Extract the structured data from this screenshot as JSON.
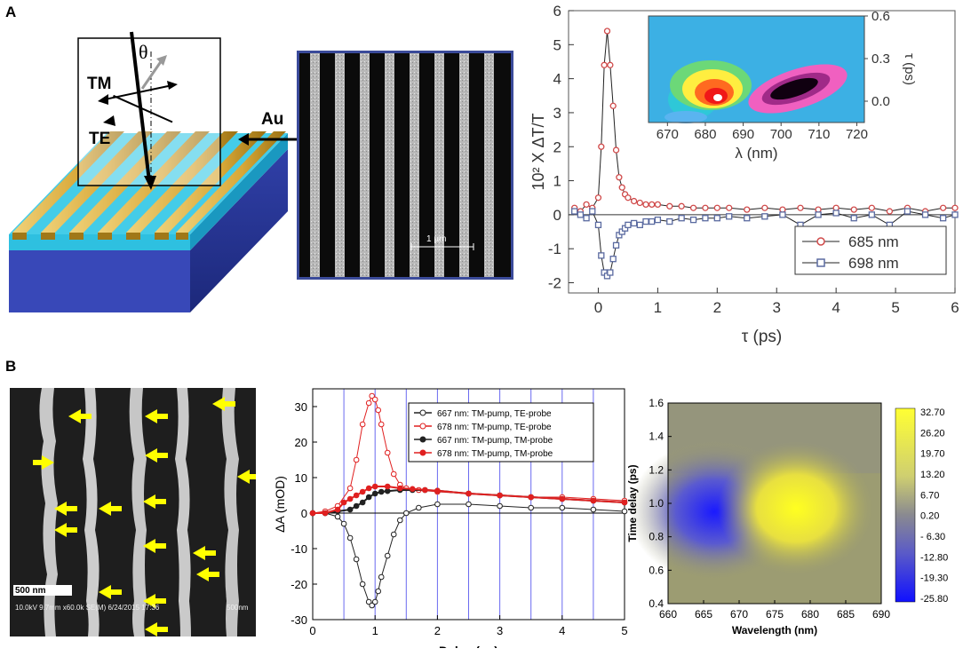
{
  "panel_labels": {
    "a": "A",
    "b": "B"
  },
  "schematic": {
    "theta": "θ",
    "tm": "TM",
    "te": "TE",
    "au": "Au",
    "sem_scale": "1 µm"
  },
  "sem_b": {
    "scale": "500 nm",
    "info": "10.0kV 9.7mm x60.0k SE(M) 6/24/2015 17:36",
    "info_scale": "500nm"
  },
  "colors": {
    "series_685": "#d04a4a",
    "series_698": "#5a6aa0",
    "bc_black": "#222222",
    "bc_red": "#e02020",
    "colorbar_pos": "#ffff33",
    "colorbar_neg": "#1a1aff"
  },
  "chart_data": [
    {
      "type": "line",
      "title": "",
      "xlabel": "τ (ps)",
      "ylabel": "10² X ΔT/T",
      "xlim": [
        -0.5,
        6
      ],
      "ylim": [
        -2.3,
        6
      ],
      "xticks": [
        0,
        1,
        2,
        3,
        4,
        5,
        6
      ],
      "yticks": [
        -2,
        -1,
        0,
        1,
        2,
        3,
        4,
        5,
        6
      ],
      "series": [
        {
          "name": "685 nm",
          "marker": "circle",
          "x": [
            -0.4,
            -0.3,
            -0.2,
            -0.1,
            0.0,
            0.05,
            0.1,
            0.15,
            0.2,
            0.25,
            0.3,
            0.35,
            0.4,
            0.45,
            0.5,
            0.6,
            0.7,
            0.8,
            0.9,
            1.0,
            1.2,
            1.4,
            1.6,
            1.8,
            2.0,
            2.2,
            2.5,
            2.8,
            3.1,
            3.4,
            3.7,
            4.0,
            4.3,
            4.6,
            4.9,
            5.2,
            5.5,
            5.8,
            6.0
          ],
          "y": [
            0.2,
            0.1,
            0.3,
            0.2,
            0.5,
            2.0,
            4.4,
            5.4,
            4.4,
            3.2,
            1.9,
            1.1,
            0.8,
            0.6,
            0.5,
            0.4,
            0.35,
            0.3,
            0.3,
            0.3,
            0.25,
            0.25,
            0.2,
            0.2,
            0.2,
            0.2,
            0.15,
            0.2,
            0.15,
            0.2,
            0.15,
            0.2,
            0.15,
            0.2,
            0.1,
            0.2,
            0.1,
            0.2,
            0.2
          ]
        },
        {
          "name": "698 nm",
          "marker": "square",
          "x": [
            -0.4,
            -0.3,
            -0.2,
            -0.1,
            0.0,
            0.05,
            0.1,
            0.15,
            0.2,
            0.25,
            0.3,
            0.35,
            0.4,
            0.45,
            0.5,
            0.6,
            0.7,
            0.8,
            0.9,
            1.0,
            1.2,
            1.4,
            1.6,
            1.8,
            2.0,
            2.2,
            2.5,
            2.8,
            3.1,
            3.4,
            3.7,
            4.0,
            4.3,
            4.6,
            4.9,
            5.2,
            5.5,
            5.8,
            6.0
          ],
          "y": [
            0.1,
            0.0,
            -0.1,
            0.1,
            -0.3,
            -1.2,
            -1.7,
            -1.8,
            -1.7,
            -1.3,
            -0.9,
            -0.6,
            -0.5,
            -0.4,
            -0.3,
            -0.25,
            -0.3,
            -0.2,
            -0.2,
            -0.15,
            -0.2,
            -0.1,
            -0.15,
            -0.1,
            -0.1,
            -0.05,
            -0.1,
            -0.05,
            0.0,
            -0.3,
            0.0,
            0.05,
            -0.1,
            0.0,
            -0.3,
            0.1,
            0.0,
            -0.1,
            0.0
          ]
        }
      ],
      "legend": {
        "position": "bottom-right",
        "entries": [
          "685 nm",
          "698 nm"
        ]
      },
      "inset": {
        "type": "heatmap",
        "xlabel": "λ (nm)",
        "ylabel": "τ (ps)",
        "xticks": [
          670,
          680,
          690,
          700,
          710,
          720
        ],
        "yticks": [
          "0.0",
          "0.3",
          "0.6"
        ]
      }
    },
    {
      "type": "line",
      "title": "",
      "xlabel": "Delay (ps)",
      "ylabel": "ΔA (mOD)",
      "xlim": [
        0,
        5
      ],
      "ylim": [
        -30,
        35
      ],
      "xticks": [
        0,
        1,
        2,
        3,
        4,
        5
      ],
      "yticks": [
        -30,
        -20,
        -10,
        0,
        10,
        20,
        30
      ],
      "series": [
        {
          "name": "667 nm: TM-pump, TE-probe",
          "color": "black",
          "filled": false,
          "x": [
            0.0,
            0.2,
            0.4,
            0.5,
            0.6,
            0.7,
            0.8,
            0.9,
            0.95,
            1.0,
            1.05,
            1.1,
            1.2,
            1.3,
            1.4,
            1.5,
            1.7,
            2.0,
            2.5,
            3.0,
            3.5,
            4.0,
            4.5,
            5.0
          ],
          "y": [
            0,
            0,
            -1,
            -3,
            -7,
            -13,
            -20,
            -25,
            -26,
            -25,
            -22,
            -18,
            -12,
            -6,
            -2,
            0,
            1.5,
            2.5,
            2.5,
            2,
            1.5,
            1.5,
            1,
            0.5
          ]
        },
        {
          "name": "678 nm: TM-pump, TE-probe",
          "color": "red",
          "filled": false,
          "x": [
            0.0,
            0.2,
            0.4,
            0.6,
            0.7,
            0.8,
            0.9,
            0.95,
            1.0,
            1.05,
            1.1,
            1.2,
            1.3,
            1.4,
            1.5,
            1.7,
            2.0,
            2.5,
            3.0,
            3.5,
            4.0,
            4.5,
            5.0
          ],
          "y": [
            0,
            0.5,
            2,
            7,
            15,
            25,
            31,
            33,
            32,
            29,
            25,
            17,
            11,
            8,
            7,
            6.5,
            6,
            5.5,
            5,
            4.5,
            4.5,
            4,
            3.5
          ]
        },
        {
          "name": "667 nm: TM-pump, TM-probe",
          "color": "black",
          "filled": true,
          "x": [
            0.0,
            0.2,
            0.4,
            0.6,
            0.7,
            0.8,
            0.9,
            1.0,
            1.1,
            1.2,
            1.4,
            1.6,
            1.8,
            2.0,
            2.5,
            3.0,
            3.5,
            4.0,
            4.5,
            5.0
          ],
          "y": [
            0,
            0,
            0.5,
            1,
            2,
            3,
            4.5,
            5.5,
            6,
            6.2,
            6.5,
            6.5,
            6.5,
            6.3,
            5.5,
            5,
            4.5,
            4,
            3.5,
            3
          ]
        },
        {
          "name": "678 nm: TM-pump, TM-probe",
          "color": "red",
          "filled": true,
          "x": [
            0.0,
            0.2,
            0.4,
            0.5,
            0.6,
            0.7,
            0.8,
            0.9,
            1.0,
            1.2,
            1.4,
            1.6,
            1.8,
            2.0,
            2.5,
            3.0,
            3.5,
            4.0,
            4.5,
            5.0
          ],
          "y": [
            0,
            0,
            1,
            3,
            4,
            5,
            6,
            7,
            7.5,
            7.5,
            7,
            6.8,
            6.5,
            6.3,
            5.5,
            5,
            4.5,
            4,
            3.5,
            3
          ]
        }
      ],
      "legend": {
        "position": "top-right",
        "entries": [
          "667 nm: TM-pump, TE-probe",
          "678 nm: TM-pump, TE-probe",
          "667 nm: TM-pump, TM-probe",
          "678 nm: TM-pump, TM-probe"
        ]
      }
    },
    {
      "type": "heatmap",
      "title": "",
      "xlabel": "Wavelength (nm)",
      "ylabel": "Time delay (ps)",
      "xlim": [
        660,
        690
      ],
      "ylim": [
        0.4,
        1.6
      ],
      "xticks": [
        660,
        665,
        670,
        675,
        680,
        685,
        690
      ],
      "yticks": [
        "0.4",
        "0.6",
        "0.8",
        "1.0",
        "1.2",
        "1.4",
        "1.6"
      ],
      "colorbar": [
        "32.70",
        "26.20",
        "19.70",
        "13.20",
        "6.70",
        "0.20",
        "- 6.30",
        "-12.80",
        "-19.30",
        "-25.80"
      ]
    }
  ]
}
